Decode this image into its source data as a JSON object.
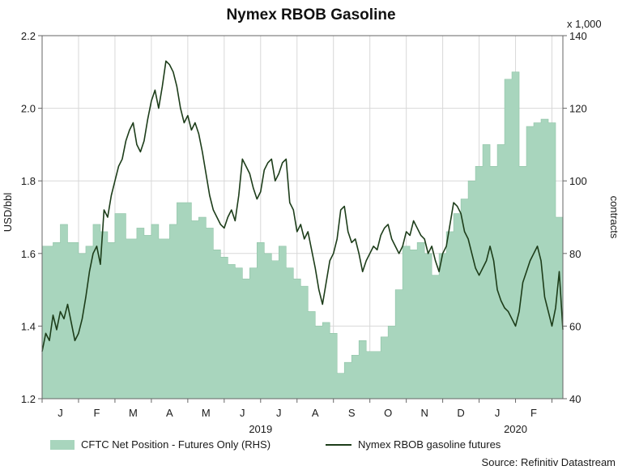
{
  "chart_data": {
    "type": "line",
    "title": "Nymex RBOB Gasoline",
    "source": "Source: Refinitiv Datastream",
    "left_axis": {
      "label": "USD/bbl",
      "range": [
        1.2,
        2.2
      ],
      "ticks": [
        1.2,
        1.4,
        1.6,
        1.8,
        2.0,
        2.2
      ],
      "tick_labels": [
        "1.2",
        "1.4",
        "1.6",
        "1.8",
        "2.0",
        "2.2"
      ]
    },
    "right_axis": {
      "label": "contracts",
      "multiplier": "x 1,000",
      "range": [
        40,
        140
      ],
      "ticks": [
        40,
        60,
        80,
        100,
        120,
        140
      ],
      "tick_labels": [
        "40",
        "60",
        "80",
        "100",
        "120",
        "140"
      ]
    },
    "x_axis": {
      "months": [
        {
          "label": "J",
          "pos": 0.5
        },
        {
          "label": "F",
          "pos": 1.5
        },
        {
          "label": "M",
          "pos": 2.5
        },
        {
          "label": "A",
          "pos": 3.5
        },
        {
          "label": "M",
          "pos": 4.5
        },
        {
          "label": "J",
          "pos": 5.5
        },
        {
          "label": "J",
          "pos": 6.5
        },
        {
          "label": "A",
          "pos": 7.5
        },
        {
          "label": "S",
          "pos": 8.5
        },
        {
          "label": "O",
          "pos": 9.5
        },
        {
          "label": "N",
          "pos": 10.5
        },
        {
          "label": "D",
          "pos": 11.5
        },
        {
          "label": "J",
          "pos": 12.5
        },
        {
          "label": "F",
          "pos": 13.5
        }
      ],
      "years": [
        {
          "label": "2019",
          "pos": 6.0
        },
        {
          "label": "2020",
          "pos": 13.0
        }
      ],
      "range": [
        0,
        14.3
      ]
    },
    "grid": true,
    "legend_position": "bottom",
    "series": [
      {
        "name": "CFTC Net Position - Futures Only (RHS)",
        "type": "area",
        "axis": "right",
        "color": "#a8d5bd",
        "x": [
          0,
          0.3,
          0.5,
          0.7,
          1.0,
          1.2,
          1.4,
          1.6,
          1.8,
          2.0,
          2.3,
          2.6,
          2.8,
          3.0,
          3.2,
          3.5,
          3.7,
          3.9,
          4.1,
          4.3,
          4.5,
          4.7,
          4.9,
          5.1,
          5.3,
          5.5,
          5.7,
          5.9,
          6.1,
          6.3,
          6.5,
          6.7,
          6.9,
          7.1,
          7.3,
          7.5,
          7.7,
          7.9,
          8.1,
          8.3,
          8.5,
          8.7,
          8.9,
          9.1,
          9.3,
          9.5,
          9.7,
          9.9,
          10.1,
          10.3,
          10.5,
          10.7,
          10.9,
          11.1,
          11.3,
          11.5,
          11.7,
          11.9,
          12.1,
          12.3,
          12.5,
          12.7,
          12.9,
          13.1,
          13.3,
          13.5,
          13.7,
          13.9,
          14.1,
          14.3
        ],
        "values": [
          82,
          83,
          88,
          83,
          80,
          82,
          88,
          86,
          83,
          91,
          84,
          87,
          85,
          88,
          84,
          88,
          94,
          94,
          89,
          90,
          87,
          81,
          79,
          77,
          76,
          73,
          76,
          83,
          80,
          78,
          82,
          76,
          73,
          71,
          64,
          60,
          61,
          58,
          47,
          50,
          52,
          56,
          53,
          53,
          57,
          60,
          70,
          82,
          81,
          83,
          80,
          74,
          80,
          86,
          91,
          95,
          100,
          104,
          110,
          104,
          110,
          128,
          130,
          104,
          115,
          116,
          117,
          116,
          90,
          92
        ]
      },
      {
        "name": "Nymex RBOB gasoline futures",
        "type": "line",
        "axis": "left",
        "color": "#1d3d1a",
        "x": [
          0,
          0.1,
          0.2,
          0.3,
          0.4,
          0.5,
          0.6,
          0.7,
          0.8,
          0.9,
          1.0,
          1.1,
          1.2,
          1.3,
          1.4,
          1.5,
          1.6,
          1.7,
          1.8,
          1.9,
          2.0,
          2.1,
          2.2,
          2.3,
          2.4,
          2.5,
          2.6,
          2.7,
          2.8,
          2.9,
          3.0,
          3.1,
          3.2,
          3.3,
          3.4,
          3.5,
          3.6,
          3.7,
          3.8,
          3.9,
          4.0,
          4.1,
          4.2,
          4.3,
          4.4,
          4.5,
          4.6,
          4.7,
          4.8,
          4.9,
          5.0,
          5.1,
          5.2,
          5.3,
          5.4,
          5.5,
          5.6,
          5.7,
          5.8,
          5.9,
          6.0,
          6.1,
          6.2,
          6.3,
          6.4,
          6.5,
          6.6,
          6.7,
          6.8,
          6.9,
          7.0,
          7.1,
          7.2,
          7.3,
          7.4,
          7.5,
          7.6,
          7.7,
          7.8,
          7.9,
          8.0,
          8.1,
          8.2,
          8.3,
          8.4,
          8.5,
          8.6,
          8.7,
          8.8,
          8.9,
          9.0,
          9.1,
          9.2,
          9.3,
          9.4,
          9.5,
          9.6,
          9.7,
          9.8,
          9.9,
          10.0,
          10.1,
          10.2,
          10.3,
          10.4,
          10.5,
          10.6,
          10.7,
          10.8,
          10.9,
          11.0,
          11.1,
          11.2,
          11.3,
          11.4,
          11.5,
          11.6,
          11.7,
          11.8,
          11.9,
          12.0,
          12.1,
          12.2,
          12.3,
          12.4,
          12.5,
          12.6,
          12.7,
          12.8,
          12.9,
          13.0,
          13.1,
          13.2,
          13.3,
          13.4,
          13.5,
          13.6,
          13.7,
          13.8,
          13.9,
          14.0,
          14.1,
          14.2,
          14.3
        ],
        "values": [
          1.33,
          1.38,
          1.36,
          1.43,
          1.39,
          1.44,
          1.42,
          1.46,
          1.41,
          1.36,
          1.38,
          1.42,
          1.48,
          1.55,
          1.6,
          1.62,
          1.57,
          1.72,
          1.7,
          1.76,
          1.8,
          1.84,
          1.86,
          1.91,
          1.94,
          1.96,
          1.9,
          1.88,
          1.91,
          1.97,
          2.02,
          2.05,
          2.0,
          2.06,
          2.13,
          2.12,
          2.1,
          2.06,
          2.0,
          1.96,
          1.98,
          1.94,
          1.96,
          1.93,
          1.88,
          1.82,
          1.76,
          1.72,
          1.7,
          1.68,
          1.67,
          1.7,
          1.72,
          1.69,
          1.76,
          1.86,
          1.84,
          1.82,
          1.78,
          1.75,
          1.77,
          1.83,
          1.85,
          1.86,
          1.8,
          1.82,
          1.85,
          1.86,
          1.74,
          1.72,
          1.66,
          1.68,
          1.64,
          1.66,
          1.61,
          1.56,
          1.5,
          1.46,
          1.52,
          1.58,
          1.6,
          1.64,
          1.72,
          1.73,
          1.66,
          1.63,
          1.64,
          1.6,
          1.55,
          1.58,
          1.6,
          1.62,
          1.61,
          1.65,
          1.67,
          1.68,
          1.64,
          1.62,
          1.6,
          1.62,
          1.66,
          1.65,
          1.69,
          1.67,
          1.65,
          1.64,
          1.6,
          1.62,
          1.58,
          1.55,
          1.6,
          1.62,
          1.68,
          1.74,
          1.73,
          1.71,
          1.66,
          1.64,
          1.6,
          1.56,
          1.54,
          1.56,
          1.58,
          1.62,
          1.58,
          1.5,
          1.47,
          1.45,
          1.44,
          1.42,
          1.4,
          1.44,
          1.52,
          1.55,
          1.58,
          1.6,
          1.62,
          1.58,
          1.48,
          1.44,
          1.4,
          1.45,
          1.55,
          1.39
        ]
      }
    ]
  }
}
